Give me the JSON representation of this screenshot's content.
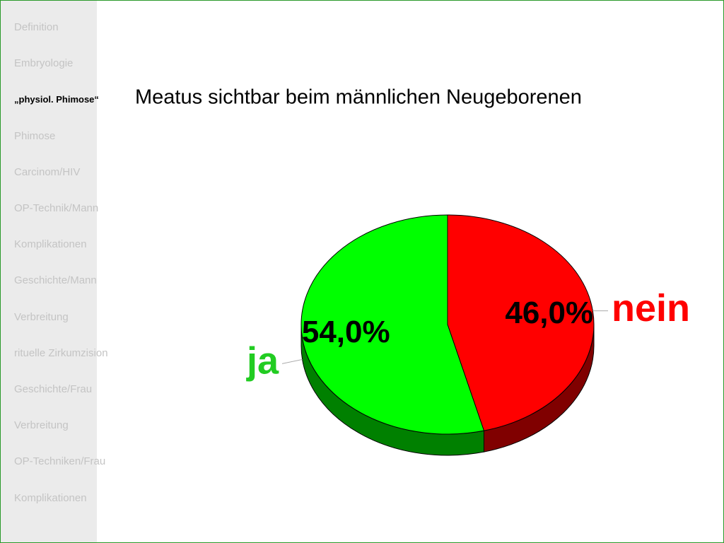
{
  "navigation": {
    "items": [
      "Definition",
      "Embryologie",
      "„physiol. Phimose“",
      "Phimose",
      "Carcinom/HIV",
      "OP-Technik/Mann",
      "Komplikationen",
      "Geschichte/Mann",
      "Verbreitung",
      "rituelle Zirkumzision",
      "Geschichte/Frau",
      "Verbreitung",
      "OP-Techniken/Frau",
      "Komplikationen"
    ],
    "active": 2
  },
  "chart_data": {
    "type": "pie",
    "title": "Meatus sichtbar beim männlichen Neugeborenen",
    "categories": [
      "nein",
      "ja"
    ],
    "values": [
      46,
      54
    ],
    "value_labels": [
      "46,0%",
      "54,0%"
    ],
    "colors": [
      "#ff0000",
      "#00ff00"
    ]
  }
}
